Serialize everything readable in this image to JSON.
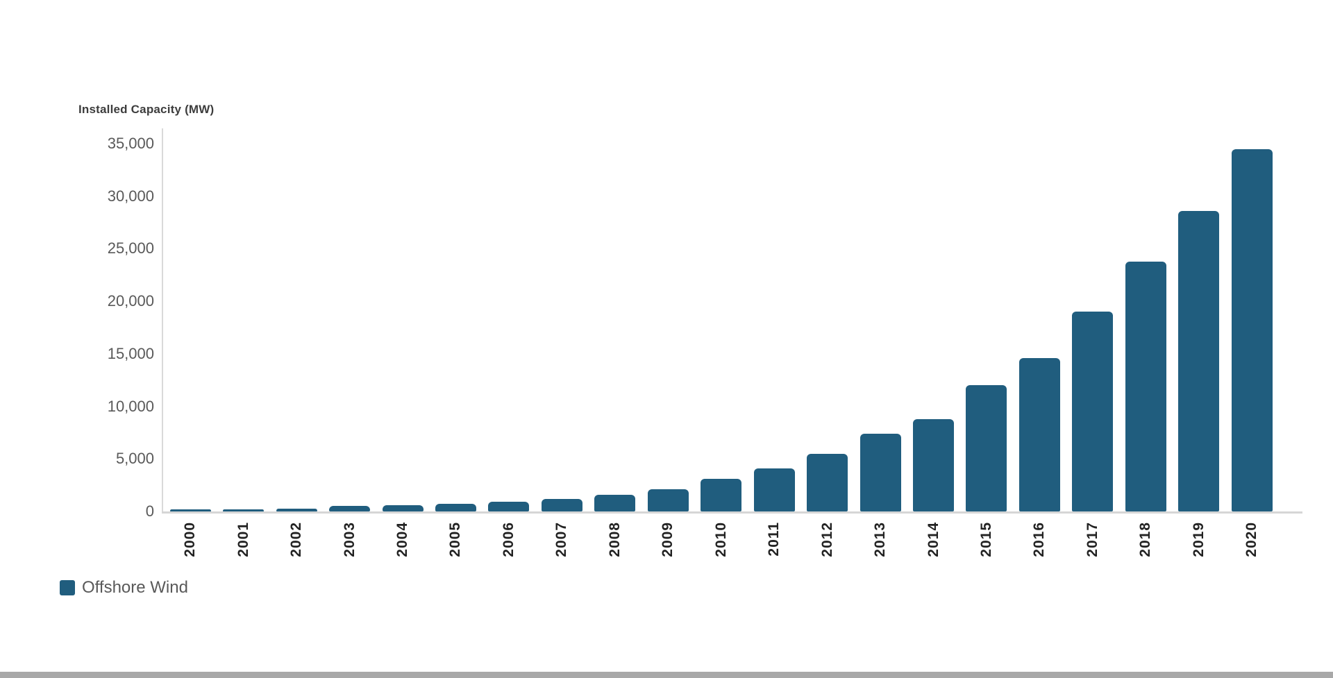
{
  "chart_data": {
    "type": "bar",
    "axis_title": "Installed Capacity (MW)",
    "series_name": "Offshore Wind",
    "bar_color": "#205d7e",
    "categories": [
      "2000",
      "2001",
      "2002",
      "2003",
      "2004",
      "2005",
      "2006",
      "2007",
      "2008",
      "2009",
      "2010",
      "2011",
      "2012",
      "2013",
      "2014",
      "2015",
      "2016",
      "2017",
      "2018",
      "2019",
      "2020"
    ],
    "values": [
      70,
      100,
      260,
      520,
      600,
      700,
      950,
      1200,
      1600,
      2100,
      3100,
      4100,
      5500,
      7400,
      8800,
      12000,
      14600,
      19000,
      23800,
      28600,
      34500
    ],
    "xlabel": "",
    "ylabel": "Installed Capacity (MW)",
    "ylim": [
      0,
      35000
    ],
    "grid": false,
    "legend_position": "bottom-left",
    "x_tick_rotation": 90,
    "y_ticks": [
      {
        "value": 0,
        "label": "0"
      },
      {
        "value": 5000,
        "label": "5,000"
      },
      {
        "value": 10000,
        "label": "10,000"
      },
      {
        "value": 15000,
        "label": "15,000"
      },
      {
        "value": 20000,
        "label": "20,000"
      },
      {
        "value": 25000,
        "label": "25,000"
      },
      {
        "value": 30000,
        "label": "30,000"
      },
      {
        "value": 35000,
        "label": "35,000"
      }
    ]
  }
}
